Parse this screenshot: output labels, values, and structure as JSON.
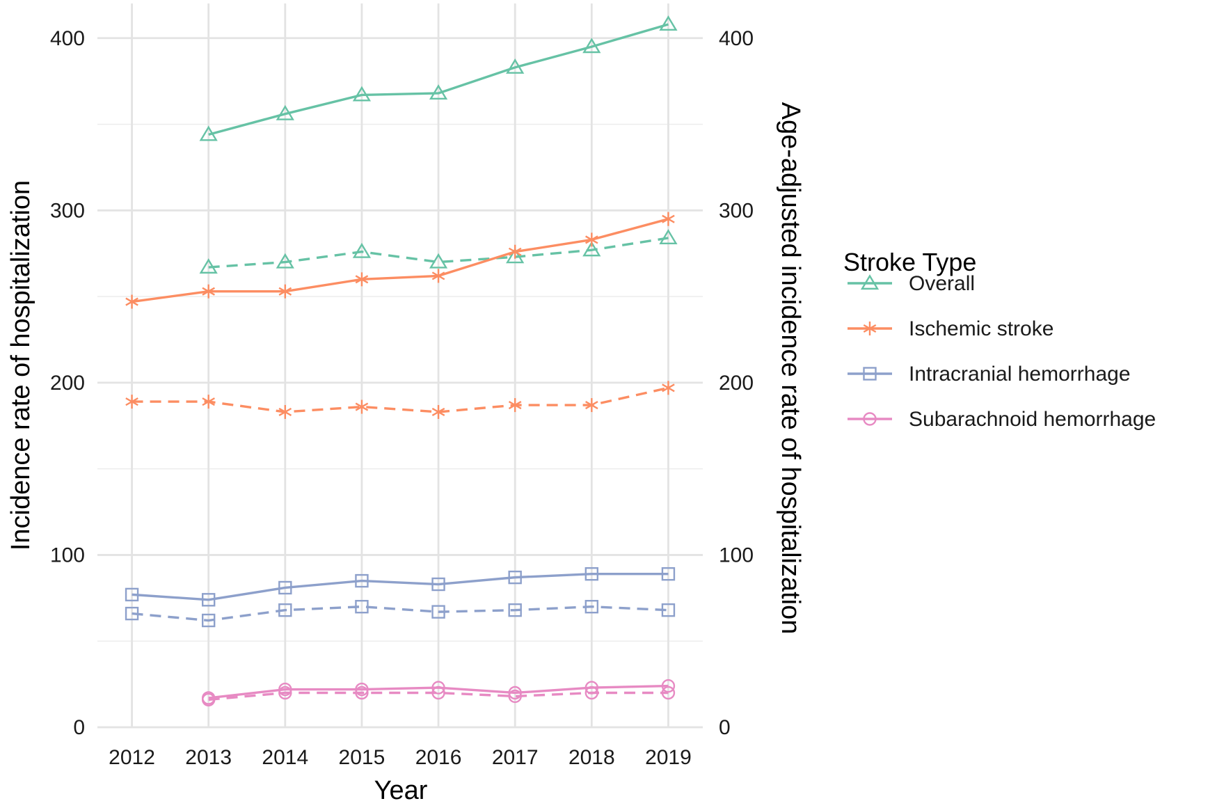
{
  "chart_data": {
    "type": "line",
    "title": "",
    "xlabel": "Year",
    "ylabel_left": "Incidence rate of hospitalization",
    "ylabel_right": "Age-adjusted incidence rate of hospitalization",
    "x": [
      2012,
      2013,
      2014,
      2015,
      2016,
      2017,
      2018,
      2019
    ],
    "x_tick_labels": [
      "2012",
      "2013",
      "2014",
      "2015",
      "2016",
      "2017",
      "2018",
      "2019"
    ],
    "ylim": [
      0,
      410
    ],
    "y_ticks": [
      0,
      100,
      200,
      300,
      400
    ],
    "y_tick_labels": [
      "0",
      "100",
      "200",
      "300",
      "400"
    ],
    "grid": true,
    "legend": {
      "title": "Stroke Type",
      "position": "right",
      "entries": [
        {
          "label": "Overall",
          "color": "#66c2a5",
          "marker": "triangle"
        },
        {
          "label": "Ischemic stroke",
          "color": "#fc8d62",
          "marker": "asterisk"
        },
        {
          "label": "Intracranial hemorrhage",
          "color": "#8da0cb",
          "marker": "square"
        },
        {
          "label": "Subarachnoid hemorrhage",
          "color": "#e78ac3",
          "marker": "circle"
        }
      ]
    },
    "series": [
      {
        "name": "Overall",
        "measure": "crude",
        "linetype": "solid",
        "color": "#66c2a5",
        "marker": "triangle",
        "x": [
          2013,
          2014,
          2015,
          2016,
          2017,
          2018,
          2019
        ],
        "values": [
          344,
          356,
          367,
          368,
          383,
          395,
          408
        ]
      },
      {
        "name": "Overall",
        "measure": "age-adjusted",
        "linetype": "dashed",
        "color": "#66c2a5",
        "marker": "triangle",
        "x": [
          2013,
          2014,
          2015,
          2016,
          2017,
          2018,
          2019
        ],
        "values": [
          267,
          270,
          276,
          270,
          273,
          277,
          284
        ]
      },
      {
        "name": "Ischemic stroke",
        "measure": "crude",
        "linetype": "solid",
        "color": "#fc8d62",
        "marker": "asterisk",
        "x": [
          2012,
          2013,
          2014,
          2015,
          2016,
          2017,
          2018,
          2019
        ],
        "values": [
          247,
          253,
          253,
          260,
          262,
          276,
          283,
          295
        ]
      },
      {
        "name": "Ischemic stroke",
        "measure": "age-adjusted",
        "linetype": "dashed",
        "color": "#fc8d62",
        "marker": "asterisk",
        "x": [
          2012,
          2013,
          2014,
          2015,
          2016,
          2017,
          2018,
          2019
        ],
        "values": [
          189,
          189,
          183,
          186,
          183,
          187,
          187,
          197
        ]
      },
      {
        "name": "Intracranial hemorrhage",
        "measure": "crude",
        "linetype": "solid",
        "color": "#8da0cb",
        "marker": "square",
        "x": [
          2012,
          2013,
          2014,
          2015,
          2016,
          2017,
          2018,
          2019
        ],
        "values": [
          77,
          74,
          81,
          85,
          83,
          87,
          89,
          89
        ]
      },
      {
        "name": "Intracranial hemorrhage",
        "measure": "age-adjusted",
        "linetype": "dashed",
        "color": "#8da0cb",
        "marker": "square",
        "x": [
          2012,
          2013,
          2014,
          2015,
          2016,
          2017,
          2018,
          2019
        ],
        "values": [
          66,
          62,
          68,
          70,
          67,
          68,
          70,
          68
        ]
      },
      {
        "name": "Subarachnoid hemorrhage",
        "measure": "crude",
        "linetype": "solid",
        "color": "#e78ac3",
        "marker": "circle",
        "x": [
          2013,
          2014,
          2015,
          2016,
          2017,
          2018,
          2019
        ],
        "values": [
          17,
          22,
          22,
          23,
          20,
          23,
          24
        ]
      },
      {
        "name": "Subarachnoid hemorrhage",
        "measure": "age-adjusted",
        "linetype": "dashed",
        "color": "#e78ac3",
        "marker": "circle",
        "x": [
          2013,
          2014,
          2015,
          2016,
          2017,
          2018,
          2019
        ],
        "values": [
          16,
          20,
          20,
          20,
          18,
          20,
          20
        ]
      }
    ]
  }
}
